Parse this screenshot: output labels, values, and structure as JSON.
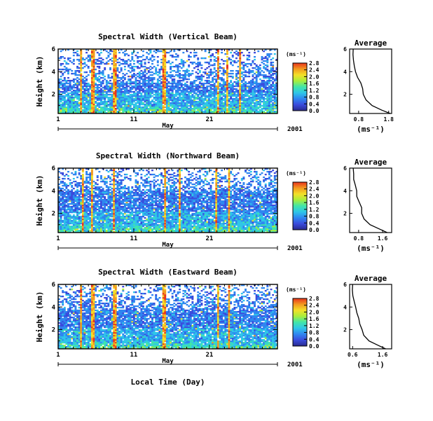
{
  "figure": {
    "x_axis_label": "Local Time (Day)",
    "month_label": "May",
    "year_label": "2001",
    "day_ticks": [
      "1",
      "11",
      "21"
    ],
    "height_axis_label": "Height (km)",
    "height_ticks": [
      "6",
      "4",
      "2"
    ],
    "colorbar_unit": "(ms⁻¹)",
    "colorbar_ticks": [
      "2.8",
      "2.4",
      "2.0",
      "1.6",
      "1.2",
      "0.8",
      "0.4",
      "0.0"
    ],
    "average_title": "Average",
    "average_x_label": "(ms⁻¹)"
  },
  "colors": {
    "colormap": [
      "#2a2a8f",
      "#3a4bdc",
      "#2f86f0",
      "#2fc6e8",
      "#41e6a8",
      "#a8ee3c",
      "#f3e028",
      "#f39a1f",
      "#e8341c"
    ],
    "background": "#ffffff",
    "axis": "#000000"
  },
  "chart_data": [
    {
      "type": "heatmap",
      "title": "Spectral Width (Vertical Beam)",
      "ylabel": "Height (km)",
      "xlabel": "",
      "x_range_days": [
        1,
        30
      ],
      "y_range_km": [
        0.3,
        6.0
      ],
      "z_range": [
        0.0,
        2.8
      ],
      "colorbar_ticks": [
        2.8,
        2.4,
        2.0,
        1.6,
        1.2,
        0.8,
        0.4,
        0.0
      ],
      "strong_event_days": [
        4.0,
        5.6,
        8.5,
        15.0,
        22.2,
        23.4,
        25.0
      ],
      "data_coverage_top_km": 3.0,
      "average_profile": {
        "title": "Average",
        "xlabel": "(ms⁻¹)",
        "xlim": [
          0.5,
          1.9
        ],
        "x_ticks": [
          "0.8",
          "1.8"
        ],
        "y_ticks": [
          "6",
          "4",
          "2"
        ],
        "heights_km": [
          0.3,
          0.6,
          1.0,
          1.5,
          2.0,
          2.5,
          3.0,
          3.5,
          4.0,
          4.5,
          5.0,
          5.5,
          6.0
        ],
        "values": [
          1.85,
          1.55,
          1.25,
          1.05,
          0.95,
          0.92,
          0.85,
          0.75,
          0.7,
          0.66,
          0.64,
          0.62,
          0.62
        ]
      }
    },
    {
      "type": "heatmap",
      "title": "Spectral Width (Northward Beam)",
      "ylabel": "Height (km)",
      "xlabel": "",
      "x_range_days": [
        1,
        30
      ],
      "y_range_km": [
        0.3,
        6.0
      ],
      "z_range": [
        0.0,
        2.8
      ],
      "colorbar_ticks": [
        2.8,
        2.4,
        2.0,
        1.6,
        1.2,
        0.8,
        0.4,
        0.0
      ],
      "strong_event_days": [
        4.2,
        5.5,
        8.4,
        15.1,
        17.0,
        22.0,
        23.6
      ],
      "data_coverage_top_km": 4.0,
      "average_profile": {
        "title": "Average",
        "xlabel": "(ms⁻¹)",
        "xlim": [
          0.5,
          1.9
        ],
        "x_ticks": [
          "0.8",
          "1.6"
        ],
        "y_ticks": [
          "6",
          "4",
          "2"
        ],
        "heights_km": [
          0.3,
          0.6,
          1.0,
          1.5,
          2.0,
          2.5,
          3.0,
          3.5,
          4.0,
          4.5,
          5.0,
          5.5,
          6.0
        ],
        "values": [
          1.75,
          1.5,
          1.2,
          1.0,
          0.92,
          0.88,
          0.82,
          0.76,
          0.72,
          0.68,
          0.65,
          0.63,
          0.62
        ]
      }
    },
    {
      "type": "heatmap",
      "title": "Spectral Width (Eastward Beam)",
      "ylabel": "Height (km)",
      "xlabel": "Local Time (Day)",
      "x_range_days": [
        1,
        30
      ],
      "y_range_km": [
        0.3,
        6.0
      ],
      "z_range": [
        0.0,
        2.8
      ],
      "colorbar_ticks": [
        2.8,
        2.4,
        2.0,
        1.6,
        1.2,
        0.8,
        0.4,
        0.0
      ],
      "strong_event_days": [
        4.1,
        5.6,
        8.5,
        15.0,
        22.1,
        23.5
      ],
      "data_coverage_top_km": 3.8,
      "average_profile": {
        "title": "Average",
        "xlabel": "(ms⁻¹)",
        "xlim": [
          0.5,
          1.9
        ],
        "x_ticks": [
          "0.6",
          "1.6"
        ],
        "y_ticks": [
          "6",
          "4",
          "2"
        ],
        "heights_km": [
          0.3,
          0.6,
          1.0,
          1.5,
          2.0,
          2.5,
          3.0,
          3.5,
          4.0,
          4.5,
          5.0,
          5.5,
          6.0
        ],
        "values": [
          1.7,
          1.45,
          1.15,
          0.98,
          0.9,
          0.86,
          0.8,
          0.74,
          0.7,
          0.66,
          0.63,
          0.61,
          0.6
        ]
      }
    }
  ]
}
